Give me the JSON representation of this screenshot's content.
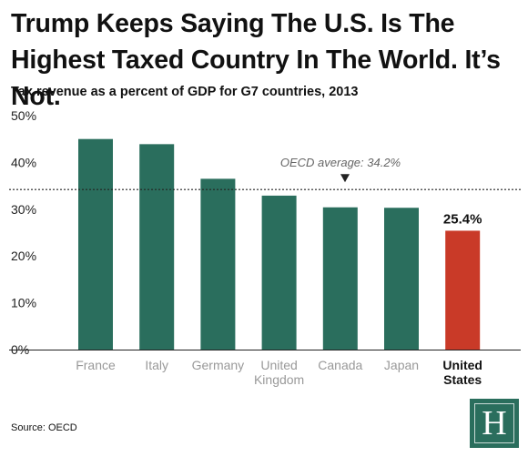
{
  "header": {
    "title": "Trump Keeps Saying The U.S. Is The Highest Taxed Country In The World. It’s Not."
  },
  "chart_data": {
    "type": "bar",
    "title": "Tax revenue as a percent of GDP for G7 countries, 2013",
    "categories": [
      [
        "France"
      ],
      [
        "Italy"
      ],
      [
        "Germany"
      ],
      [
        "United",
        "Kingdom"
      ],
      [
        "Canada"
      ],
      [
        "Japan"
      ],
      [
        "United",
        "States"
      ]
    ],
    "values": [
      45.0,
      43.9,
      36.5,
      32.9,
      30.4,
      30.3,
      25.4
    ],
    "highlight_index": 6,
    "data_labels": [
      {
        "index": 6,
        "text": "25.4%"
      }
    ],
    "ylim": [
      0,
      50
    ],
    "yticks": [
      0,
      10,
      20,
      30,
      40,
      50
    ],
    "ytick_labels": [
      "0%",
      "10%",
      "20%",
      "30%",
      "40%",
      "50%"
    ],
    "xlabel": "",
    "ylabel": "",
    "grid": false,
    "reference_line": {
      "value": 34.2,
      "label": "OECD average: 34.2%",
      "style": "dotted"
    },
    "colors": {
      "bar": "#2a6e5d",
      "highlight": "#c93a28"
    }
  },
  "footer": {
    "source": "Source: OECD",
    "logo_letter": "H"
  }
}
